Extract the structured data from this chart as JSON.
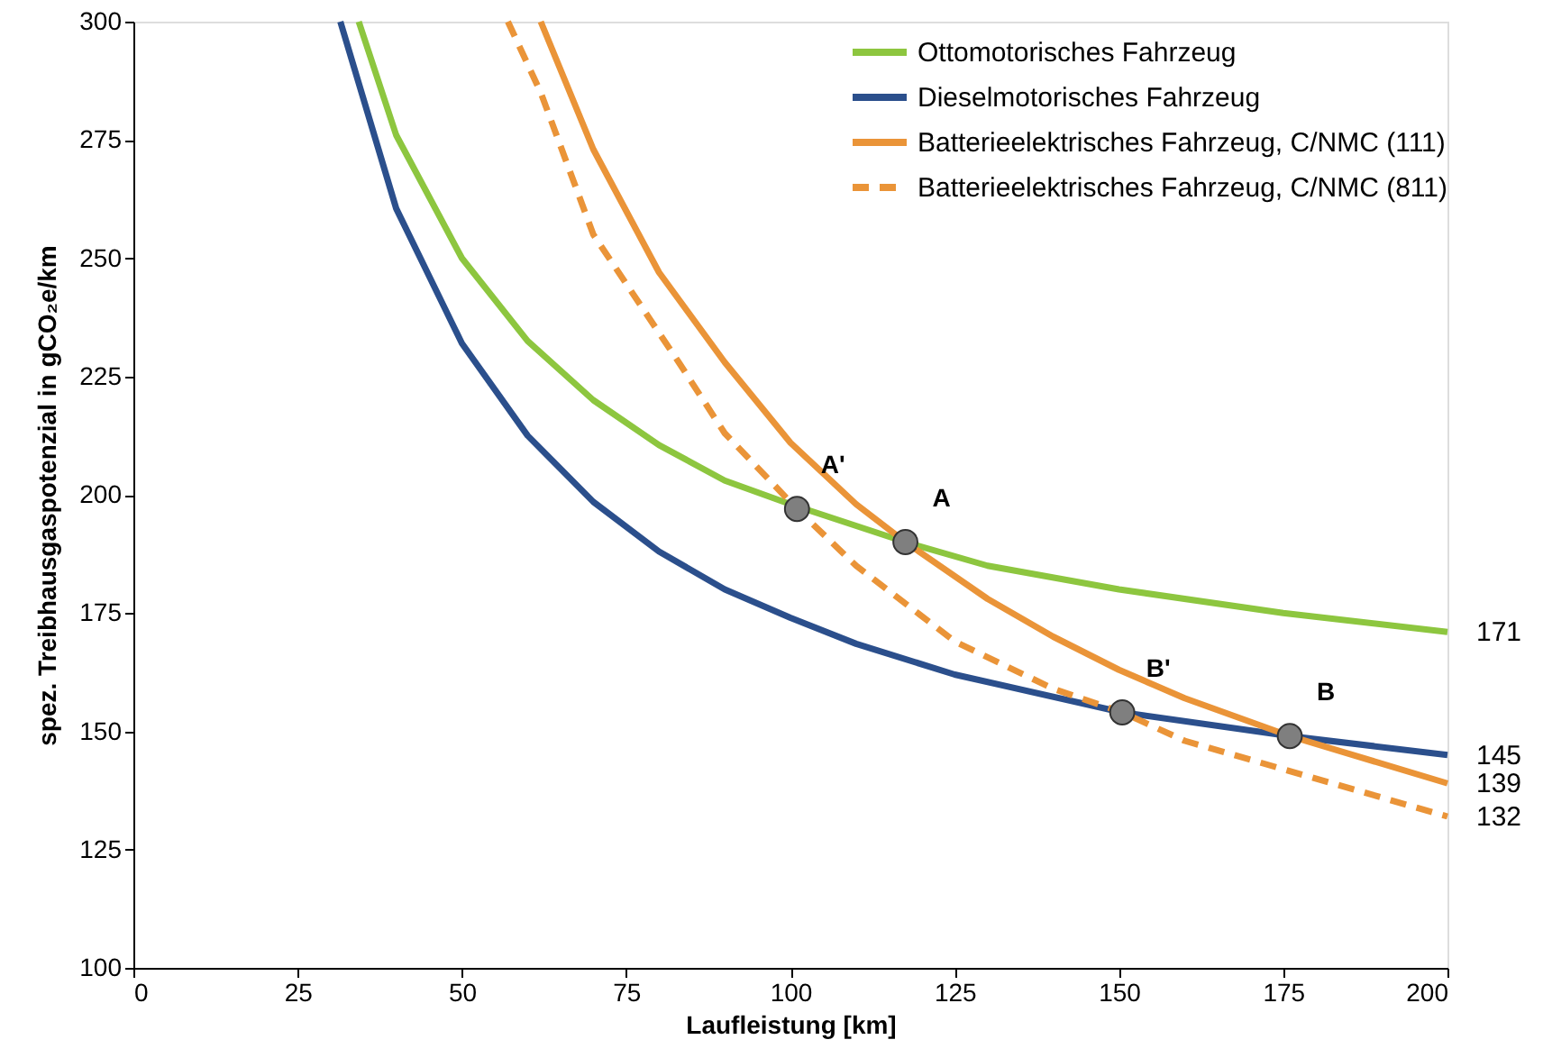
{
  "chart_data": {
    "type": "line",
    "xlabel": "Laufleistung [km]",
    "ylabel": "spez. Treibhausgaspotenzial in gCO₂e/km",
    "xlim": [
      0,
      200
    ],
    "xticks": [
      0,
      25,
      50,
      75,
      100,
      125,
      150,
      175,
      200
    ],
    "ylim": [
      100,
      300
    ],
    "yticks": [
      100,
      125,
      150,
      175,
      200,
      225,
      250,
      275,
      300
    ],
    "grid": false,
    "legend": "top right",
    "marker": "none",
    "series": [
      {
        "name": "Ottomotorisches Fahrzeug",
        "color": "#8dc63f",
        "line_style": "solid",
        "x": [
          34.3,
          40,
          50,
          60,
          70,
          80,
          90,
          100,
          117.5,
          130,
          150,
          175,
          200
        ],
        "values": [
          300,
          276,
          250,
          232.5,
          220,
          210.5,
          203,
          198,
          190,
          185,
          180,
          175,
          171
        ]
      },
      {
        "name": "Dieselmotorisches Fahrzeug",
        "color": "#2b4f8c",
        "line_style": "solid",
        "x": [
          31.5,
          40,
          50,
          60,
          70,
          80,
          90,
          100,
          110,
          125,
          150.5,
          176,
          200
        ],
        "values": [
          300,
          260.5,
          232,
          212.5,
          198.5,
          188,
          180,
          174,
          168.5,
          162,
          154,
          149,
          145
        ]
      },
      {
        "name": "Batterieelektrisches Fahrzeug, C/NMC (111)",
        "color": "#ea9438",
        "line_style": "solid",
        "x": [
          62,
          70,
          80,
          90,
          100,
          110,
          117.5,
          130,
          140,
          150,
          160,
          176,
          200
        ],
        "values": [
          300,
          273,
          247,
          228,
          211,
          198,
          190,
          178,
          170,
          163,
          157,
          149,
          139
        ]
      },
      {
        "name": "Batterieelektrisches Fahrzeug, C/NMC (811)",
        "color": "#ea9438",
        "line_style": "dashed",
        "x": [
          57,
          62,
          70,
          83,
          90,
          101,
          110,
          125,
          140,
          150.5,
          160,
          175,
          200
        ],
        "values": [
          300,
          285,
          255,
          228,
          213,
          197,
          185,
          169,
          159,
          154,
          148,
          142,
          132
        ]
      },
      {
        "type": "scatter",
        "marker": "circle",
        "color": "#7f7f7f",
        "x": [
          101,
          117.5,
          150.5,
          176
        ],
        "values": [
          197,
          190,
          154,
          149
        ]
      }
    ],
    "annotations": [
      {
        "text": "A'",
        "x": 101,
        "y": 197
      },
      {
        "text": "A",
        "x": 117.5,
        "y": 190
      },
      {
        "text": "B'",
        "x": 150.5,
        "y": 154
      },
      {
        "text": "B",
        "x": 176,
        "y": 149
      },
      {
        "text": "171",
        "x": 200,
        "y": 171
      },
      {
        "text": "145",
        "x": 200,
        "y": 145
      },
      {
        "text": "139",
        "x": 200,
        "y": 139
      },
      {
        "text": "132",
        "x": 200,
        "y": 132
      }
    ]
  }
}
